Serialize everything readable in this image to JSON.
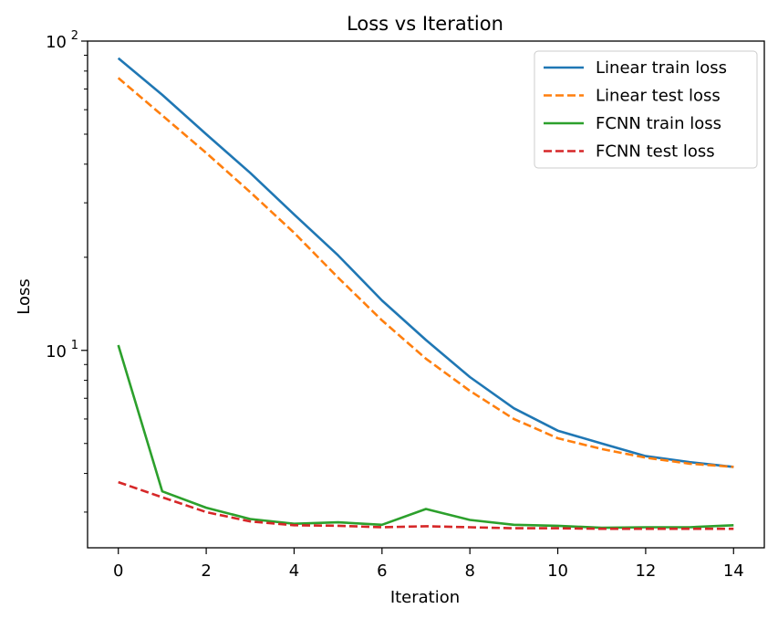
{
  "chart_data": {
    "type": "line",
    "title": "Loss vs Iteration",
    "xlabel": "Iteration",
    "ylabel": "Loss",
    "yscale": "log",
    "xlim": [
      -0.7,
      14.7
    ],
    "ylim": [
      2.3,
      100
    ],
    "x_ticks": [
      0,
      2,
      4,
      6,
      8,
      10,
      12,
      14
    ],
    "y_tick_labels": [
      {
        "base": "10",
        "exp": "2",
        "value": 100
      },
      {
        "base": "10",
        "exp": "1",
        "value": 10
      }
    ],
    "grid": false,
    "legend_position": "top-right",
    "x": [
      0,
      1,
      2,
      3,
      4,
      5,
      6,
      7,
      8,
      9,
      10,
      11,
      12,
      13,
      14
    ],
    "series": [
      {
        "name": "Linear train loss",
        "color": "#1f77b4",
        "dash": "solid",
        "values": [
          88,
          67,
          50,
          37.5,
          27.5,
          20.3,
          14.5,
          10.8,
          8.2,
          6.5,
          5.5,
          5.0,
          4.55,
          4.35,
          4.2
        ]
      },
      {
        "name": "Linear test loss",
        "color": "#ff7f0e",
        "dash": "dashed",
        "values": [
          76,
          57.5,
          43.5,
          32.5,
          24,
          17.2,
          12.5,
          9.4,
          7.4,
          6.0,
          5.2,
          4.8,
          4.5,
          4.3,
          4.2
        ]
      },
      {
        "name": "FCNN train loss",
        "color": "#2ca02c",
        "dash": "solid",
        "values": [
          10.4,
          3.5,
          3.1,
          2.85,
          2.75,
          2.78,
          2.73,
          3.07,
          2.83,
          2.73,
          2.71,
          2.67,
          2.68,
          2.68,
          2.72
        ]
      },
      {
        "name": "FCNN test loss",
        "color": "#d62728",
        "dash": "dashed",
        "values": [
          3.75,
          3.35,
          3.0,
          2.8,
          2.72,
          2.71,
          2.68,
          2.7,
          2.68,
          2.66,
          2.66,
          2.65,
          2.65,
          2.65,
          2.65
        ]
      }
    ]
  }
}
